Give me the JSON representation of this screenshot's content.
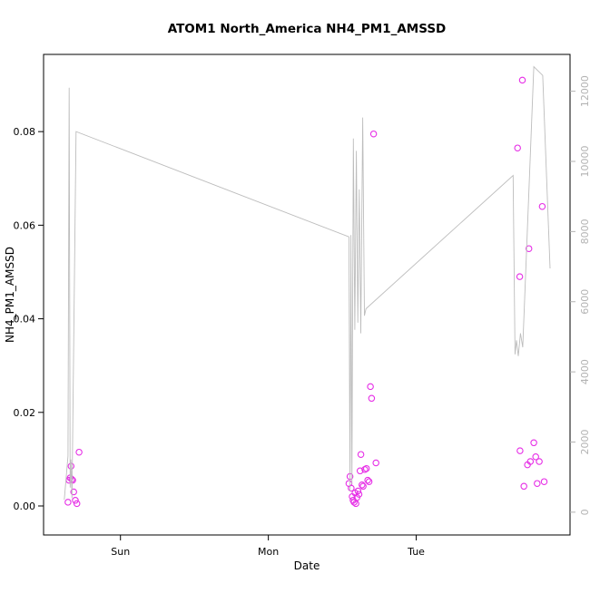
{
  "page": {
    "background": "#ffffff"
  },
  "chart_data": {
    "type": "scatter",
    "title": "ATOM1 North_America NH4_PM1_AMSSD",
    "xlabel": "Date",
    "ylabel": "NH4_PM1_AMSSD",
    "grid": false,
    "legend": "none",
    "x_axis": {
      "min": 0.48,
      "max": 4.04,
      "ticks": [
        {
          "value": 1,
          "label": "Sun"
        },
        {
          "value": 2,
          "label": "Mon"
        },
        {
          "value": 3,
          "label": "Tue"
        }
      ]
    },
    "y_left": {
      "min": -0.0062,
      "max": 0.0965,
      "ticks": [
        0,
        0.02,
        0.04,
        0.06,
        0.08
      ],
      "tick_labels": [
        "0.00",
        "0.02",
        "0.04",
        "0.06",
        "0.08"
      ],
      "color": "#000000"
    },
    "y_right": {
      "min": -650,
      "max": 13050,
      "ticks": [
        0,
        2000,
        4000,
        6000,
        8000,
        10000,
        12000
      ],
      "color": "#b3b3b3"
    },
    "series": [
      {
        "name": "NH4_PM1_AMSSD-points",
        "type": "points",
        "axis": "left",
        "color": "#e62ee6",
        "points": [
          [
            0.645,
            0.0008
          ],
          [
            0.652,
            0.0055
          ],
          [
            0.66,
            0.006
          ],
          [
            0.666,
            0.0085
          ],
          [
            0.671,
            0.0057
          ],
          [
            0.677,
            0.0055
          ],
          [
            0.684,
            0.003
          ],
          [
            0.695,
            0.0012
          ],
          [
            0.705,
            0.0005
          ],
          [
            0.72,
            0.0115
          ],
          [
            2.545,
            0.0048
          ],
          [
            2.552,
            0.0063
          ],
          [
            2.56,
            0.0038
          ],
          [
            2.567,
            0.002
          ],
          [
            2.573,
            0.0012
          ],
          [
            2.58,
            0.0008
          ],
          [
            2.586,
            0.0028
          ],
          [
            2.592,
            0.0005
          ],
          [
            2.599,
            0.0018
          ],
          [
            2.606,
            0.0032
          ],
          [
            2.613,
            0.0025
          ],
          [
            2.62,
            0.0075
          ],
          [
            2.626,
            0.011
          ],
          [
            2.633,
            0.0045
          ],
          [
            2.641,
            0.0042
          ],
          [
            2.652,
            0.0078
          ],
          [
            2.663,
            0.008
          ],
          [
            2.672,
            0.0055
          ],
          [
            2.681,
            0.0052
          ],
          [
            2.69,
            0.0255
          ],
          [
            2.698,
            0.023
          ],
          [
            2.712,
            0.0795
          ],
          [
            2.728,
            0.0092
          ],
          [
            3.685,
            0.0765
          ],
          [
            3.7,
            0.049
          ],
          [
            3.702,
            0.0118
          ],
          [
            3.718,
            0.091
          ],
          [
            3.728,
            0.0042
          ],
          [
            3.752,
            0.0088
          ],
          [
            3.762,
            0.055
          ],
          [
            3.772,
            0.0095
          ],
          [
            3.795,
            0.0135
          ],
          [
            3.808,
            0.0105
          ],
          [
            3.818,
            0.0048
          ],
          [
            3.832,
            0.0095
          ],
          [
            3.852,
            0.064
          ],
          [
            3.865,
            0.0052
          ]
        ]
      },
      {
        "name": "secondary-axis-line",
        "type": "line",
        "axis": "right",
        "color": "#bdbdbd",
        "points": [
          [
            0.62,
            350
          ],
          [
            0.645,
            1600
          ],
          [
            0.653,
            12100
          ],
          [
            0.66,
            700
          ],
          [
            0.665,
            1500
          ],
          [
            0.672,
            400
          ],
          [
            0.7,
            10850
          ],
          [
            2.545,
            7850
          ],
          [
            2.552,
            600
          ],
          [
            2.558,
            7900
          ],
          [
            2.565,
            800
          ],
          [
            2.575,
            10650
          ],
          [
            2.585,
            5200
          ],
          [
            2.595,
            10300
          ],
          [
            2.605,
            5400
          ],
          [
            2.615,
            9200
          ],
          [
            2.625,
            5100
          ],
          [
            2.638,
            11250
          ],
          [
            2.65,
            5600
          ],
          [
            2.66,
            5800
          ],
          [
            3.655,
            9600
          ],
          [
            3.668,
            4500
          ],
          [
            3.678,
            4900
          ],
          [
            3.69,
            4450
          ],
          [
            3.705,
            5100
          ],
          [
            3.72,
            4700
          ],
          [
            3.795,
            12700
          ],
          [
            3.855,
            12450
          ],
          [
            3.905,
            6950
          ]
        ]
      }
    ]
  }
}
